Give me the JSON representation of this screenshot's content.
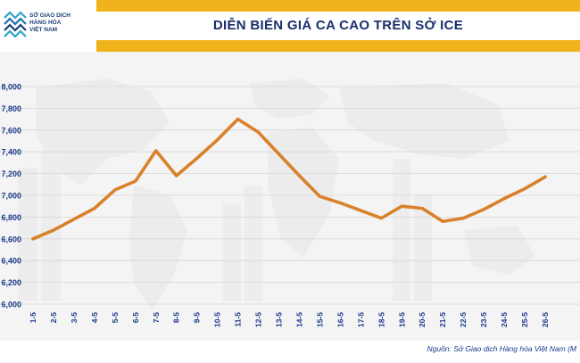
{
  "header": {
    "logo_lines": [
      "SỞ GIAO DỊCH",
      "HÀNG HÓA",
      "VIỆT NAM"
    ],
    "title": "DIỄN BIẾN GIÁ CA CAO TRÊN SỞ ICE"
  },
  "source": "Nguồn: Sở Giao dịch Hàng hóa Việt Nam (M",
  "colors": {
    "accent": "#f1b31c",
    "line": "#d8812a",
    "title": "#1a2f6b",
    "source": "#1a3a8a"
  },
  "chart_data": {
    "type": "line",
    "title": "DIỄN BIẾN GIÁ CA CAO TRÊN SỞ ICE",
    "categories": [
      "1-5",
      "2-5",
      "3-5",
      "4-5",
      "5-5",
      "6-5",
      "7-5",
      "8-5",
      "9-5",
      "10-5",
      "11-5",
      "12-5",
      "13-5",
      "14-5",
      "15-5",
      "16-5",
      "17-5",
      "18-5",
      "19-5",
      "20-5",
      "21-5",
      "22-5",
      "23-5",
      "24-5",
      "25-5",
      "26-5"
    ],
    "ytick_labels": [
      "6,000",
      "6,200",
      "6,400",
      "6,600",
      "6,800",
      "7,000",
      "7,200",
      "7,400",
      "7,600",
      "7,800",
      "8,000"
    ],
    "ylim": [
      6000,
      8000
    ],
    "grid": true,
    "series": [
      {
        "values": [
          6600,
          6680,
          6780,
          6880,
          7050,
          7130,
          7410,
          7180,
          7340,
          7510,
          7700,
          7580,
          7380,
          7180,
          6990,
          6930,
          6860,
          6790,
          6900,
          6880,
          6760,
          6790,
          6870,
          6970,
          7060,
          7170
        ]
      }
    ]
  }
}
